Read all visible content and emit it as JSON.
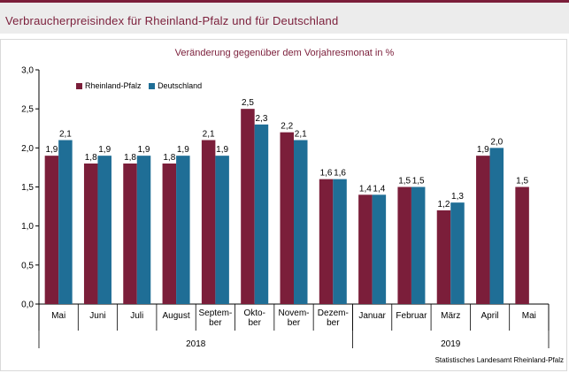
{
  "title": "Verbraucherpreisindex für Rheinland-Pfalz und für Deutschland",
  "chart_data": {
    "type": "bar",
    "subtitle": "Veränderung gegenüber dem Vorjahresmonat in %",
    "categories": [
      [
        "Mai"
      ],
      [
        "Juni"
      ],
      [
        "Juli"
      ],
      [
        "August"
      ],
      [
        "Septem-",
        "ber"
      ],
      [
        "Okto-",
        "ber"
      ],
      [
        "Novem-",
        "ber"
      ],
      [
        "Dezem-",
        "ber"
      ],
      [
        "Januar"
      ],
      [
        "Februar"
      ],
      [
        "März"
      ],
      [
        "April"
      ],
      [
        "Mai"
      ]
    ],
    "series": [
      {
        "name": "Rheinland-Pfalz",
        "color": "#7b1e3a",
        "values": [
          1.9,
          1.8,
          1.8,
          1.8,
          2.1,
          2.5,
          2.2,
          1.6,
          1.4,
          1.5,
          1.2,
          1.9,
          1.5
        ],
        "labels": [
          "1,9",
          "1,8",
          "1,8",
          "1,8",
          "2,1",
          "2,5",
          "2,2",
          "1,6",
          "1,4",
          "1,5",
          "1,2",
          "1,9",
          "1,5"
        ]
      },
      {
        "name": "Deutschland",
        "color": "#1f6e96",
        "values": [
          2.1,
          1.9,
          1.9,
          1.9,
          1.9,
          2.3,
          2.1,
          1.6,
          1.4,
          1.5,
          1.3,
          2.0,
          null
        ],
        "labels": [
          "2,1",
          "1,9",
          "1,9",
          "1,9",
          "1,9",
          "2,3",
          "2,1",
          "1,6",
          "1,4",
          "1,5",
          "1,3",
          "2,0",
          ""
        ]
      }
    ],
    "yticks": [
      0,
      0.5,
      1.0,
      1.5,
      2.0,
      2.5,
      3.0
    ],
    "ytick_labels": [
      "0,0",
      "0,5",
      "1,0",
      "1,5",
      "2,0",
      "2,5",
      "3,0"
    ],
    "ylim": [
      0,
      3.0
    ],
    "year_groups": [
      {
        "label": "2018",
        "start": 0,
        "end": 7
      },
      {
        "label": "2019",
        "start": 8,
        "end": 12
      }
    ],
    "legend_position": "top-left",
    "grid": false
  },
  "source": "Statistisches Landesamt Rheinland-Pfalz"
}
